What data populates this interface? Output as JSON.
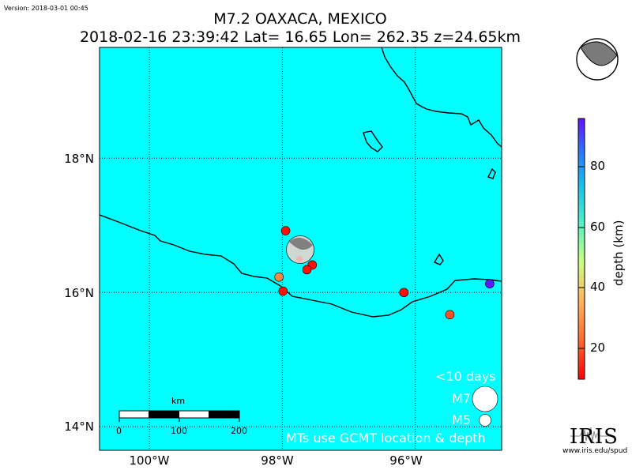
{
  "version": "Version: 2018-03-01 00:45",
  "title": {
    "line1": "M7.2 OAXACA, MEXICO",
    "line2": "2018-02-16 23:39:42 Lat= 16.65 Lon= 262.35 z=24.65km"
  },
  "map": {
    "bg_color": "#00ffff",
    "lon_range": [
      -100.75,
      -94.7
    ],
    "lat_range": [
      13.65,
      19.65
    ],
    "lat_ticks": [
      {
        "value": 14,
        "label": "14°N"
      },
      {
        "value": 16,
        "label": "16°N"
      },
      {
        "value": 18,
        "label": "18°N"
      }
    ],
    "lon_ticks": [
      {
        "value": -100,
        "label": "100°W"
      },
      {
        "value": -98,
        "label": "98°W"
      },
      {
        "value": -96,
        "label": "96°W"
      }
    ],
    "grid": "dotted",
    "mainshock": {
      "lon": -97.65,
      "lat": 16.65,
      "magnitude": 7.2,
      "depth_km": 24.65
    },
    "events": [
      {
        "lon": -97.95,
        "lat": 16.92,
        "depth_km": 12
      },
      {
        "lon": -97.55,
        "lat": 16.41,
        "depth_km": 12
      },
      {
        "lon": -97.63,
        "lat": 16.34,
        "depth_km": 12
      },
      {
        "lon": -98.05,
        "lat": 16.23,
        "depth_km": 28
      },
      {
        "lon": -97.99,
        "lat": 16.02,
        "depth_km": 12
      },
      {
        "lon": -96.17,
        "lat": 16.0,
        "depth_km": 12
      },
      {
        "lon": -95.48,
        "lat": 15.67,
        "depth_km": 20
      },
      {
        "lon": -94.88,
        "lat": 16.13,
        "depth_km": 95
      }
    ]
  },
  "scalebar": {
    "unit": "km",
    "labels": [
      "0",
      "100",
      "200"
    ]
  },
  "legend": {
    "title": "<10 days",
    "m7_label": "M7",
    "m5_label": "M5",
    "note": "MTs use GCMT location & depth"
  },
  "colorbar": {
    "label": "depth (km)",
    "ticks": [
      "20",
      "40",
      "60",
      "80"
    ],
    "range": [
      10,
      96
    ]
  },
  "logo": {
    "name": "IRIS",
    "url": "www.iris.edu/spud"
  }
}
